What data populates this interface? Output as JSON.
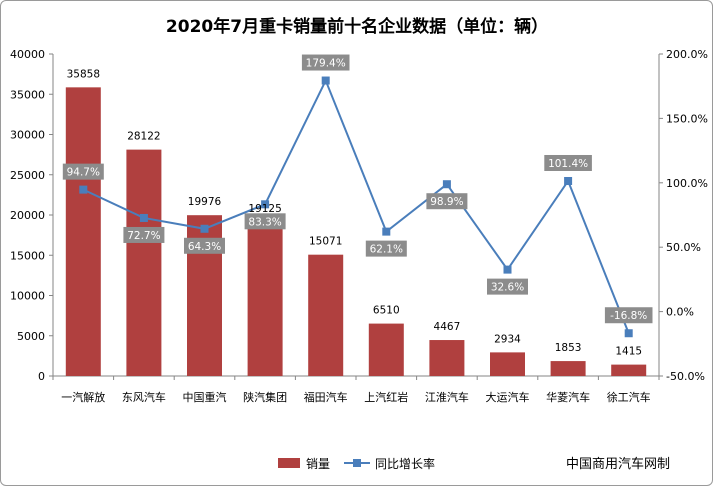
{
  "chart_data": {
    "type": "bar",
    "title": "2020年7月重卡销量前十名企业数据（单位：辆）",
    "categories": [
      "一汽解放",
      "东风汽车",
      "中国重汽",
      "陕汽集团",
      "福田汽车",
      "上汽红岩",
      "江淮汽车",
      "大运汽车",
      "华菱汽车",
      "徐工汽车"
    ],
    "series": [
      {
        "name": "销量",
        "type": "bar",
        "axis": "left",
        "color": "#b0403f",
        "values": [
          35858,
          28122,
          19976,
          19125,
          15071,
          6510,
          4467,
          2934,
          1853,
          1415
        ],
        "labels": [
          "35858",
          "28122",
          "19976",
          "19125",
          "15071",
          "6510",
          "4467",
          "2934",
          "1853",
          "1415"
        ]
      },
      {
        "name": "同比增长率",
        "type": "line",
        "axis": "right",
        "color": "#4a7ebb",
        "values": [
          94.7,
          72.7,
          64.3,
          83.3,
          179.4,
          62.1,
          98.9,
          32.6,
          101.4,
          -16.8
        ],
        "labels": [
          "94.7%",
          "72.7%",
          "64.3%",
          "83.3%",
          "179.4%",
          "62.1%",
          "98.9%",
          "32.6%",
          "101.4%",
          "-16.8%"
        ]
      }
    ],
    "y_left": {
      "min": 0,
      "max": 40000,
      "ticks": [
        "0",
        "5000",
        "10000",
        "15000",
        "20000",
        "25000",
        "30000",
        "35000",
        "40000"
      ]
    },
    "y_right": {
      "min": -50,
      "max": 200,
      "ticks": [
        "-50.0%",
        "0.0%",
        "50.0%",
        "100.0%",
        "150.0%",
        "200.0%"
      ]
    },
    "grid": false,
    "legend": "bottom",
    "source": "中国商用汽车网制"
  }
}
